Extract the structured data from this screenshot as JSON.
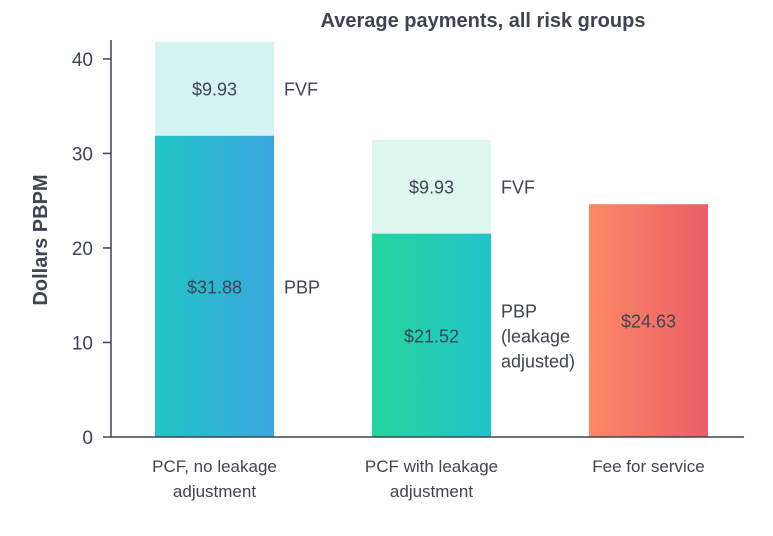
{
  "chart_data": {
    "type": "bar",
    "stacked": true,
    "title": "Average payments, all risk groups",
    "ylabel": "Dollars PBPM",
    "xlabel": "",
    "ylim": [
      0,
      42
    ],
    "yticks": [
      0,
      10,
      20,
      30,
      40
    ],
    "grid": false,
    "categories": [
      [
        "PCF, no leakage",
        "adjustment"
      ],
      [
        "PCF with leakage",
        "adjustment"
      ],
      [
        "Fee for service"
      ]
    ],
    "bars": [
      {
        "segments": [
          {
            "value": 31.88,
            "label": "$31.88",
            "side_label": [
              "PBP"
            ],
            "colors": [
              "#22c5c6",
              "#3aa6e0"
            ]
          },
          {
            "value": 9.93,
            "label": "$9.93",
            "side_label": [
              "FVF"
            ],
            "colors": [
              "#d3f4f2",
              "#d3f4f2"
            ]
          }
        ]
      },
      {
        "segments": [
          {
            "value": 21.52,
            "label": "$21.52",
            "side_label": [
              "PBP",
              "(leakage",
              "adjusted)"
            ],
            "colors": [
              "#26d69e",
              "#1fc4c9"
            ]
          },
          {
            "value": 9.93,
            "label": "$9.93",
            "side_label": [
              "FVF"
            ],
            "colors": [
              "#ddf7ef",
              "#ddf7ef"
            ]
          }
        ]
      },
      {
        "segments": [
          {
            "value": 24.63,
            "label": "$24.63",
            "side_label": [],
            "colors": [
              "#fc8865",
              "#ea5f67"
            ]
          }
        ]
      }
    ]
  }
}
